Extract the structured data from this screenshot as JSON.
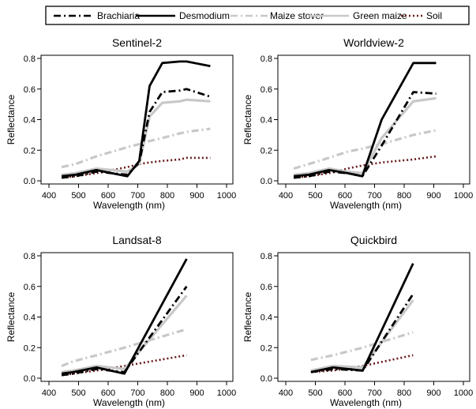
{
  "legend": {
    "items": [
      {
        "label": "Brachiaria",
        "color": "#000000",
        "dash": "dashdot"
      },
      {
        "label": "Desmodium",
        "color": "#000000",
        "dash": "solid"
      },
      {
        "label": "Maize stover",
        "color": "#c8c8c8",
        "dash": "dashdot"
      },
      {
        "label": "Green maize",
        "color": "#c8c8c8",
        "dash": "solid"
      },
      {
        "label": "Soil",
        "color": "#6b1a1a",
        "dash": "dotted"
      }
    ]
  },
  "chart_data": [
    {
      "type": "line",
      "title": "Sentinel-2",
      "xlabel": "Wavelength (nm)",
      "ylabel": "Reflectance",
      "xlim": [
        400,
        1000
      ],
      "ylim": [
        0,
        0.8
      ],
      "xticks": [
        "400",
        "500",
        "600",
        "700",
        "800",
        "900",
        "1000"
      ],
      "yticks": [
        "0.0",
        "0.2",
        "0.4",
        "0.6",
        "0.8"
      ],
      "grid": false,
      "series": [
        {
          "name": "Brachiaria",
          "x": [
            443,
            490,
            560,
            665,
            705,
            740,
            783,
            842,
            865,
            945
          ],
          "y": [
            0.02,
            0.03,
            0.06,
            0.04,
            0.12,
            0.45,
            0.58,
            0.59,
            0.6,
            0.55
          ]
        },
        {
          "name": "Desmodium",
          "x": [
            443,
            490,
            560,
            665,
            705,
            740,
            783,
            842,
            865,
            945
          ],
          "y": [
            0.03,
            0.04,
            0.07,
            0.03,
            0.13,
            0.62,
            0.77,
            0.78,
            0.78,
            0.75
          ]
        },
        {
          "name": "Maize stover",
          "x": [
            443,
            490,
            560,
            665,
            705,
            740,
            783,
            842,
            865,
            945
          ],
          "y": [
            0.09,
            0.11,
            0.16,
            0.22,
            0.24,
            0.26,
            0.28,
            0.31,
            0.32,
            0.34
          ]
        },
        {
          "name": "Green maize",
          "x": [
            443,
            490,
            560,
            665,
            705,
            740,
            783,
            842,
            865,
            945
          ],
          "y": [
            0.04,
            0.05,
            0.08,
            0.06,
            0.11,
            0.42,
            0.51,
            0.52,
            0.53,
            0.52
          ]
        },
        {
          "name": "Soil",
          "x": [
            443,
            490,
            560,
            665,
            705,
            740,
            783,
            842,
            865,
            945
          ],
          "y": [
            0.02,
            0.03,
            0.05,
            0.09,
            0.11,
            0.12,
            0.13,
            0.14,
            0.15,
            0.15
          ]
        }
      ]
    },
    {
      "type": "line",
      "title": "Worldview-2",
      "xlabel": "Wavelength (nm)",
      "ylabel": "Reflectance",
      "xlim": [
        400,
        1000
      ],
      "ylim": [
        0,
        0.8
      ],
      "xticks": [
        "400",
        "500",
        "600",
        "700",
        "800",
        "900",
        "1000"
      ],
      "yticks": [
        "0.0",
        "0.2",
        "0.4",
        "0.6",
        "0.8"
      ],
      "grid": false,
      "series": [
        {
          "name": "Brachiaria",
          "x": [
            427,
            478,
            546,
            608,
            659,
            724,
            831,
            908
          ],
          "y": [
            0.02,
            0.03,
            0.06,
            0.05,
            0.03,
            0.23,
            0.58,
            0.57
          ]
        },
        {
          "name": "Desmodium",
          "x": [
            427,
            478,
            546,
            608,
            659,
            724,
            831,
            908
          ],
          "y": [
            0.03,
            0.04,
            0.07,
            0.05,
            0.03,
            0.4,
            0.77,
            0.77
          ]
        },
        {
          "name": "Maize stover",
          "x": [
            427,
            478,
            546,
            608,
            659,
            724,
            831,
            908
          ],
          "y": [
            0.08,
            0.11,
            0.15,
            0.19,
            0.21,
            0.24,
            0.3,
            0.33
          ]
        },
        {
          "name": "Green maize",
          "x": [
            427,
            478,
            546,
            608,
            659,
            724,
            831,
            908
          ],
          "y": [
            0.04,
            0.05,
            0.08,
            0.06,
            0.05,
            0.28,
            0.52,
            0.54
          ]
        },
        {
          "name": "Soil",
          "x": [
            427,
            478,
            546,
            608,
            659,
            724,
            831,
            908
          ],
          "y": [
            0.02,
            0.03,
            0.05,
            0.08,
            0.1,
            0.12,
            0.14,
            0.16
          ]
        }
      ]
    },
    {
      "type": "line",
      "title": "Landsat-8",
      "xlabel": "Wavelength (nm)",
      "ylabel": "Reflectance",
      "xlim": [
        400,
        1000
      ],
      "ylim": [
        0,
        0.8
      ],
      "xticks": [
        "400",
        "500",
        "600",
        "700",
        "800",
        "900",
        "1000"
      ],
      "yticks": [
        "0.0",
        "0.2",
        "0.4",
        "0.6",
        "0.8"
      ],
      "grid": false,
      "series": [
        {
          "name": "Brachiaria",
          "x": [
            443,
            482,
            561,
            655,
            865
          ],
          "y": [
            0.02,
            0.03,
            0.06,
            0.04,
            0.6
          ]
        },
        {
          "name": "Desmodium",
          "x": [
            443,
            482,
            561,
            655,
            865
          ],
          "y": [
            0.03,
            0.04,
            0.07,
            0.03,
            0.78
          ]
        },
        {
          "name": "Maize stover",
          "x": [
            443,
            482,
            561,
            655,
            865
          ],
          "y": [
            0.08,
            0.11,
            0.15,
            0.2,
            0.32
          ]
        },
        {
          "name": "Green maize",
          "x": [
            443,
            482,
            561,
            655,
            865
          ],
          "y": [
            0.04,
            0.05,
            0.08,
            0.06,
            0.54
          ]
        },
        {
          "name": "Soil",
          "x": [
            443,
            482,
            561,
            655,
            865
          ],
          "y": [
            0.02,
            0.03,
            0.05,
            0.08,
            0.15
          ]
        }
      ]
    },
    {
      "type": "line",
      "title": "Quickbird",
      "xlabel": "Wavelength (nm)",
      "ylabel": "Reflectance",
      "xlim": [
        400,
        1000
      ],
      "ylim": [
        0,
        0.8
      ],
      "xticks": [
        "400",
        "500",
        "600",
        "700",
        "800",
        "900",
        "1000"
      ],
      "yticks": [
        "0.0",
        "0.2",
        "0.4",
        "0.6",
        "0.8"
      ],
      "grid": false,
      "series": [
        {
          "name": "Brachiaria",
          "x": [
            485,
            560,
            660,
            830
          ],
          "y": [
            0.04,
            0.06,
            0.05,
            0.55
          ]
        },
        {
          "name": "Desmodium",
          "x": [
            485,
            560,
            660,
            830
          ],
          "y": [
            0.04,
            0.07,
            0.05,
            0.75
          ]
        },
        {
          "name": "Maize stover",
          "x": [
            485,
            560,
            660,
            830
          ],
          "y": [
            0.12,
            0.15,
            0.2,
            0.3
          ]
        },
        {
          "name": "Green maize",
          "x": [
            485,
            560,
            660,
            830
          ],
          "y": [
            0.05,
            0.08,
            0.07,
            0.51
          ]
        },
        {
          "name": "Soil",
          "x": [
            485,
            560,
            660,
            830
          ],
          "y": [
            0.04,
            0.05,
            0.08,
            0.15
          ]
        }
      ]
    }
  ]
}
